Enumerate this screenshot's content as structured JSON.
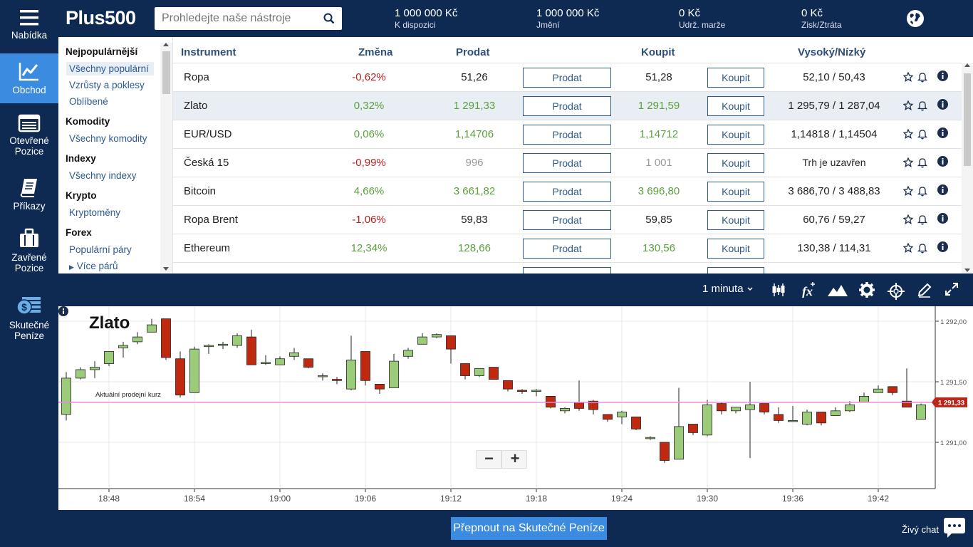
{
  "nav": {
    "menu": "Nabídka",
    "trade": "Obchod",
    "open_positions": "Otevřené Pozice",
    "orders": "Příkazy",
    "closed_positions": "Zavřené Pozice",
    "real_money": "Skutečné Peníze"
  },
  "header": {
    "logo": "Plus500",
    "search_placeholder": "Prohledejte naše nástroje",
    "stats": [
      {
        "value": "1 000 000 Kč",
        "label": "K dispozici"
      },
      {
        "value": "1 000 000 Kč",
        "label": "Jmění"
      },
      {
        "value": "0 Kč",
        "label": "Udrž. marže"
      },
      {
        "value": "0 Kč",
        "label": "Zisk/Ztráta"
      }
    ]
  },
  "categories": {
    "popular_h": "Nejpopulárnější",
    "all_popular": "Všechny populární",
    "risers_fallers": "Vzrůsty a poklesy",
    "favorites": "Oblíbené",
    "commodities_h": "Komodity",
    "all_commodities": "Všechny komodity",
    "indices_h": "Indexy",
    "all_indices": "Všechny indexy",
    "crypto_h": "Krypto",
    "cryptocurrencies": "Kryptoměny",
    "forex_h": "Forex",
    "popular_pairs": "Populární páry",
    "more_pairs": "Více párů"
  },
  "table": {
    "headers": {
      "instrument": "Instrument",
      "change": "Změna",
      "sell": "Prodat",
      "buy": "Koupit",
      "highlow": "Vysoký/Nízký"
    },
    "sell_btn": "Prodat",
    "buy_btn": "Koupit",
    "rows": [
      {
        "name": "Ropa",
        "change": "-0,62%",
        "sell": "51,26",
        "buy": "51,28",
        "hl": "52,10 / 50,43"
      },
      {
        "name": "Zlato",
        "change": "0,32%",
        "sell": "1 291,33",
        "buy": "1 291,59",
        "hl": "1 295,79 / 1 287,04"
      },
      {
        "name": "EUR/USD",
        "change": "0,06%",
        "sell": "1,14706",
        "buy": "1,14712",
        "hl": "1,14818 / 1,14504"
      },
      {
        "name": "Česká 15",
        "change": "-0,99%",
        "sell": "996",
        "buy": "1 001",
        "hl": "Trh je uzavřen"
      },
      {
        "name": "Bitcoin",
        "change": "4,66%",
        "sell": "3 661,82",
        "buy": "3 696,80",
        "hl": "3 686,70 / 3 488,83"
      },
      {
        "name": "Ropa Brent",
        "change": "-1,06%",
        "sell": "59,83",
        "buy": "59,85",
        "hl": "60,76 / 59,27"
      },
      {
        "name": "Ethereum",
        "change": "12,34%",
        "sell": "128,66",
        "buy": "130,56",
        "hl": "130,38 / 114,31"
      }
    ]
  },
  "chart_toolbar": {
    "timeframe": "1 minuta"
  },
  "chart": {
    "instrument": "Zlato",
    "line_label": "Aktuální prodejní kurz",
    "current_price_label": "1 291,33"
  },
  "chart_data": {
    "type": "candlestick",
    "y_ticks": [
      "1 292,00",
      "1 291,50",
      "1 291,00"
    ],
    "x_ticks": [
      "18:48",
      "18:54",
      "19:00",
      "19:06",
      "19:12",
      "19:18",
      "19:24",
      "19:30",
      "19:36",
      "19:42"
    ],
    "ylim": [
      1290.6,
      1292.1
    ],
    "current_price": 1291.33,
    "candles": [
      [
        1291.23,
        1291.53,
        1291.58,
        1291.18
      ],
      [
        1291.53,
        1291.6,
        1291.62,
        1291.52
      ],
      [
        1291.6,
        1291.62,
        1291.67,
        1291.53
      ],
      [
        1291.65,
        1291.75,
        1291.75,
        1291.63
      ],
      [
        1291.78,
        1291.8,
        1291.83,
        1291.7
      ],
      [
        1291.83,
        1291.87,
        1291.91,
        1291.81
      ],
      [
        1291.91,
        1291.97,
        1292.02,
        1291.91
      ],
      [
        1292.02,
        1291.7,
        1292.02,
        1291.68
      ],
      [
        1291.69,
        1291.39,
        1291.75,
        1291.37
      ],
      [
        1291.41,
        1291.77,
        1291.79,
        1291.41
      ],
      [
        1291.79,
        1291.8,
        1291.81,
        1291.73
      ],
      [
        1291.8,
        1291.81,
        1291.83,
        1291.77
      ],
      [
        1291.8,
        1291.88,
        1291.9,
        1291.78
      ],
      [
        1291.87,
        1291.64,
        1291.93,
        1291.64
      ],
      [
        1291.65,
        1291.66,
        1291.72,
        1291.64
      ],
      [
        1291.64,
        1291.69,
        1291.71,
        1291.64
      ],
      [
        1291.71,
        1291.74,
        1291.78,
        1291.68
      ],
      [
        1291.69,
        1291.62,
        1291.69,
        1291.61
      ],
      [
        1291.55,
        1291.55,
        1291.57,
        1291.51
      ],
      [
        1291.52,
        1291.51,
        1291.54,
        1291.48
      ],
      [
        1291.44,
        1291.68,
        1291.88,
        1291.43
      ],
      [
        1291.75,
        1291.51,
        1291.75,
        1291.47
      ],
      [
        1291.48,
        1291.44,
        1291.48,
        1291.4
      ],
      [
        1291.45,
        1291.67,
        1291.73,
        1291.45
      ],
      [
        1291.71,
        1291.76,
        1291.78,
        1291.69
      ],
      [
        1291.81,
        1291.87,
        1291.9,
        1291.81
      ],
      [
        1291.87,
        1291.89,
        1291.9,
        1291.86
      ],
      [
        1291.88,
        1291.77,
        1291.88,
        1291.65
      ],
      [
        1291.65,
        1291.55,
        1291.65,
        1291.52
      ],
      [
        1291.55,
        1291.61,
        1291.61,
        1291.54
      ],
      [
        1291.62,
        1291.52,
        1291.62,
        1291.52
      ],
      [
        1291.51,
        1291.44,
        1291.51,
        1291.42
      ],
      [
        1291.43,
        1291.42,
        1291.44,
        1291.4
      ],
      [
        1291.42,
        1291.43,
        1291.44,
        1291.38
      ],
      [
        1291.38,
        1291.29,
        1291.38,
        1291.28
      ],
      [
        1291.26,
        1291.28,
        1291.29,
        1291.24
      ],
      [
        1291.33,
        1291.28,
        1291.51,
        1291.26
      ],
      [
        1291.34,
        1291.27,
        1291.35,
        1291.23
      ],
      [
        1291.23,
        1291.19,
        1291.23,
        1291.17
      ],
      [
        1291.21,
        1291.25,
        1291.26,
        1291.15
      ],
      [
        1291.21,
        1291.11,
        1291.21,
        1291.1
      ],
      [
        1291.03,
        1291.04,
        1291.05,
        1291.02
      ],
      [
        1291.0,
        1290.85,
        1291.0,
        1290.83
      ],
      [
        1290.86,
        1291.13,
        1291.45,
        1290.86
      ],
      [
        1291.15,
        1291.08,
        1291.15,
        1291.06
      ],
      [
        1291.06,
        1291.31,
        1291.35,
        1291.05
      ],
      [
        1291.32,
        1291.26,
        1291.33,
        1291.23
      ],
      [
        1291.26,
        1291.29,
        1291.29,
        1291.24
      ],
      [
        1291.27,
        1291.31,
        1291.5,
        1290.87
      ],
      [
        1291.32,
        1291.25,
        1291.32,
        1291.23
      ],
      [
        1291.23,
        1291.18,
        1291.29,
        1291.16
      ],
      [
        1291.18,
        1291.18,
        1291.3,
        1291.17
      ],
      [
        1291.15,
        1291.25,
        1291.27,
        1291.14
      ],
      [
        1291.25,
        1291.16,
        1291.25,
        1291.14
      ],
      [
        1291.22,
        1291.26,
        1291.29,
        1291.22
      ],
      [
        1291.26,
        1291.31,
        1291.34,
        1291.25
      ],
      [
        1291.33,
        1291.38,
        1291.41,
        1291.33
      ],
      [
        1291.41,
        1291.44,
        1291.47,
        1291.41
      ],
      [
        1291.46,
        1291.41,
        1291.46,
        1291.39
      ],
      [
        1291.34,
        1291.29,
        1291.61,
        1291.29
      ],
      [
        1291.19,
        1291.31,
        1291.32,
        1291.19
      ]
    ]
  },
  "bottom": {
    "switch_button": "Přepnout na Skutečné Peníze",
    "live_chat": "Živý chat"
  },
  "colors": {
    "navy": "#0f2a52",
    "accent": "#3b8be0",
    "up": "#9bcc7a",
    "down": "#c0290f",
    "neg_text": "#b81f1f",
    "pos_text": "#5aa03c"
  }
}
